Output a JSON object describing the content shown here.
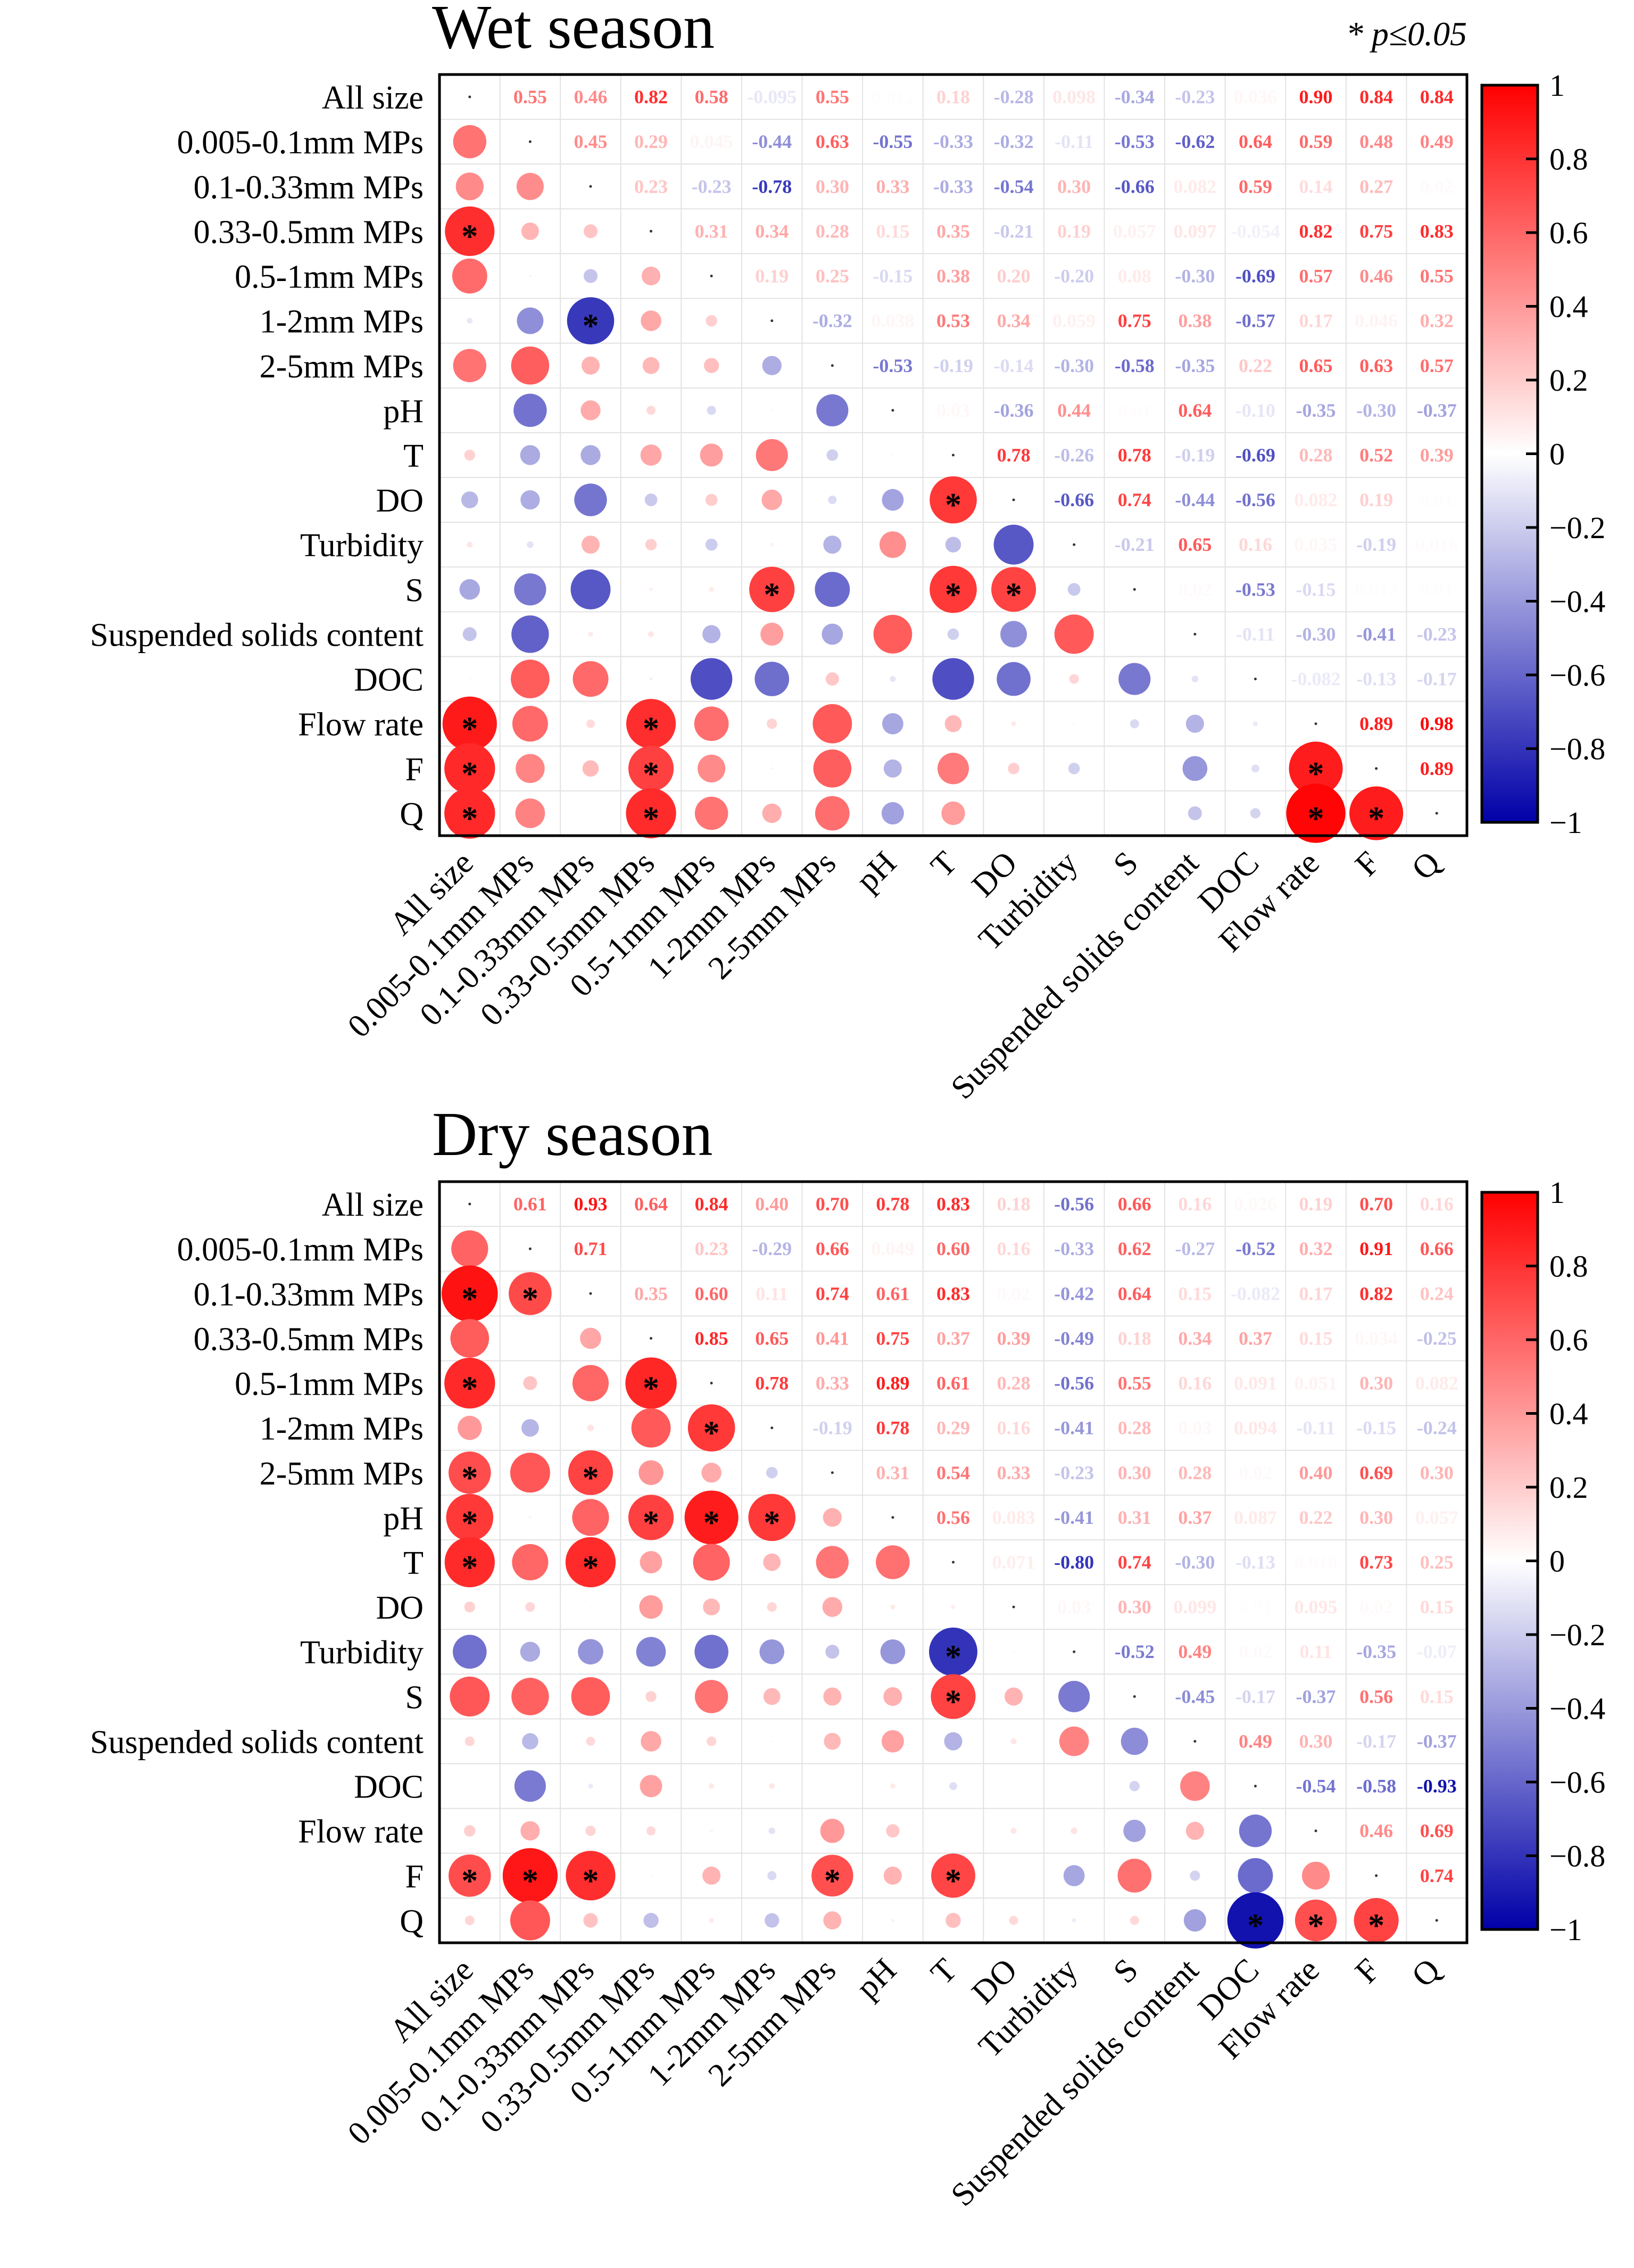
{
  "chart_data": [
    {
      "type": "heatmap",
      "title": "Wet season",
      "annotation": "* p≤0.05",
      "variables": [
        "All size",
        "0.005-0.1mm MPs",
        "0.1-0.33mm MPs",
        "0.33-0.5mm MPs",
        "0.5-1mm MPs",
        "1-2mm MPs",
        "2-5mm MPs",
        "pH",
        "T",
        "DO",
        "Turbidity",
        "S",
        "Suspended solids content",
        "DOC",
        "Flow rate",
        "F",
        "Q"
      ],
      "colorbar": {
        "min": -1,
        "max": 1,
        "ticks": [
          "1",
          "0.8",
          "0.6",
          "0.4",
          "0.2",
          "0",
          "−0.2",
          "−0.4",
          "−0.6",
          "−0.8",
          "−1"
        ],
        "colors": {
          "neg": "#0000a8",
          "mid": "#ffffff",
          "pos": "#ff0000"
        }
      },
      "matrix": [
        [
          1,
          0.55,
          0.46,
          0.82,
          0.58,
          -0.095,
          0.55,
          0.012,
          0.18,
          -0.28,
          0.098,
          -0.34,
          -0.23,
          0.036,
          0.9,
          0.84,
          0.84
        ],
        [
          0.55,
          1,
          0.45,
          0.29,
          0.045,
          -0.44,
          0.63,
          -0.55,
          -0.33,
          -0.32,
          -0.11,
          -0.53,
          -0.62,
          0.64,
          0.59,
          0.48,
          0.49
        ],
        [
          0.46,
          0.45,
          1,
          0.23,
          -0.23,
          -0.78,
          0.3,
          0.33,
          -0.33,
          -0.54,
          0.3,
          -0.66,
          0.082,
          0.59,
          0.14,
          0.27,
          0.02
        ],
        [
          0.82,
          0.29,
          0.23,
          1,
          0.31,
          0.34,
          0.28,
          0.15,
          0.35,
          -0.21,
          0.19,
          0.057,
          0.097,
          -0.054,
          0.82,
          0.75,
          0.83
        ],
        [
          0.58,
          0.045,
          -0.23,
          0.31,
          1,
          0.19,
          0.25,
          -0.15,
          0.38,
          0.2,
          -0.2,
          0.08,
          -0.3,
          -0.69,
          0.57,
          0.46,
          0.55
        ],
        [
          -0.095,
          -0.44,
          -0.78,
          0.34,
          0.19,
          1,
          -0.32,
          0.038,
          0.53,
          0.34,
          0.059,
          0.75,
          0.38,
          -0.57,
          0.17,
          0.046,
          0.32
        ],
        [
          0.55,
          0.63,
          0.3,
          0.28,
          0.25,
          -0.32,
          1,
          -0.53,
          -0.19,
          -0.14,
          -0.3,
          -0.58,
          -0.35,
          0.22,
          0.65,
          0.63,
          0.57
        ],
        [
          0.012,
          -0.55,
          0.33,
          0.15,
          -0.15,
          0.038,
          -0.53,
          1,
          0.03,
          -0.36,
          0.44,
          0.01,
          0.64,
          -0.1,
          -0.35,
          -0.3,
          -0.37
        ],
        [
          0.18,
          -0.33,
          -0.33,
          0.35,
          0.38,
          0.53,
          -0.19,
          0.03,
          1,
          0.78,
          -0.26,
          0.78,
          -0.19,
          -0.69,
          0.28,
          0.52,
          0.39
        ],
        [
          -0.28,
          -0.32,
          -0.54,
          -0.21,
          0.2,
          0.34,
          -0.14,
          -0.36,
          0.78,
          1,
          -0.66,
          0.74,
          -0.44,
          -0.56,
          0.082,
          0.19,
          0.01
        ],
        [
          0.098,
          -0.11,
          0.3,
          0.19,
          -0.2,
          0.059,
          -0.3,
          0.44,
          -0.26,
          -0.66,
          1,
          -0.21,
          0.65,
          0.16,
          0.035,
          -0.19,
          0.016
        ],
        [
          -0.34,
          -0.53,
          -0.66,
          0.057,
          0.08,
          0.75,
          -0.58,
          0.01,
          0.78,
          0.74,
          -0.21,
          1,
          0.02,
          -0.53,
          -0.15,
          0.012,
          0.01
        ],
        [
          -0.23,
          -0.62,
          0.082,
          0.097,
          -0.3,
          0.38,
          -0.35,
          0.64,
          -0.19,
          -0.44,
          0.65,
          0.02,
          1,
          -0.11,
          -0.3,
          -0.41,
          -0.23
        ],
        [
          0.036,
          0.64,
          0.59,
          -0.054,
          -0.69,
          -0.57,
          0.22,
          -0.1,
          -0.69,
          -0.56,
          0.16,
          -0.53,
          -0.11,
          1,
          -0.082,
          -0.13,
          -0.17
        ],
        [
          0.9,
          0.59,
          0.14,
          0.82,
          0.57,
          0.17,
          0.65,
          -0.35,
          0.28,
          0.082,
          0.035,
          -0.15,
          -0.3,
          -0.082,
          1,
          0.89,
          0.98
        ],
        [
          0.84,
          0.48,
          0.27,
          0.75,
          0.46,
          0.046,
          0.63,
          -0.3,
          0.52,
          0.19,
          -0.19,
          0.012,
          -0.41,
          -0.13,
          0.89,
          1,
          0.89
        ],
        [
          0.84,
          0.49,
          0.02,
          0.83,
          0.55,
          0.32,
          0.57,
          -0.37,
          0.39,
          0.01,
          0.016,
          0.01,
          -0.23,
          -0.17,
          0.98,
          0.89,
          1
        ]
      ],
      "significant_pairs": [
        [
          3,
          0
        ],
        [
          5,
          2
        ],
        [
          11,
          5
        ],
        [
          9,
          8
        ],
        [
          11,
          8
        ],
        [
          11,
          9
        ],
        [
          14,
          0
        ],
        [
          14,
          3
        ],
        [
          15,
          0
        ],
        [
          15,
          3
        ],
        [
          15,
          14
        ],
        [
          16,
          0
        ],
        [
          16,
          3
        ],
        [
          16,
          14
        ],
        [
          16,
          15
        ]
      ]
    },
    {
      "type": "heatmap",
      "title": "Dry season",
      "variables": [
        "All size",
        "0.005-0.1mm MPs",
        "0.1-0.33mm MPs",
        "0.33-0.5mm MPs",
        "0.5-1mm MPs",
        "1-2mm MPs",
        "2-5mm MPs",
        "pH",
        "T",
        "DO",
        "Turbidity",
        "S",
        "Suspended solids content",
        "DOC",
        "Flow rate",
        "F",
        "Q"
      ],
      "colorbar": {
        "min": -1,
        "max": 1,
        "ticks": [
          "1",
          "0.8",
          "0.6",
          "0.4",
          "0.2",
          "0",
          "−0.2",
          "−0.4",
          "−0.6",
          "−0.8",
          "−1"
        ],
        "colors": {
          "neg": "#0000a8",
          "mid": "#ffffff",
          "pos": "#ff0000"
        }
      },
      "matrix": [
        [
          1,
          0.61,
          0.93,
          0.64,
          0.84,
          0.4,
          0.7,
          0.78,
          0.83,
          0.18,
          -0.56,
          0.66,
          0.16,
          0.026,
          0.19,
          0.7,
          0.16
        ],
        [
          0.61,
          1,
          0.71,
          0.003,
          0.23,
          -0.29,
          0.66,
          0.049,
          0.6,
          0.16,
          -0.33,
          0.62,
          -0.27,
          -0.52,
          0.32,
          0.91,
          0.66
        ],
        [
          0.93,
          0.71,
          1,
          0.35,
          0.6,
          0.11,
          0.74,
          0.61,
          0.83,
          0.02,
          -0.42,
          0.64,
          0.15,
          -0.082,
          0.17,
          0.82,
          0.24
        ],
        [
          0.64,
          0.003,
          0.35,
          1,
          0.85,
          0.65,
          0.41,
          0.75,
          0.37,
          0.39,
          -0.49,
          0.18,
          0.34,
          0.37,
          0.15,
          0.034,
          -0.25
        ],
        [
          0.84,
          0.23,
          0.6,
          0.85,
          1,
          0.78,
          0.33,
          0.89,
          0.61,
          0.28,
          -0.56,
          0.55,
          0.16,
          0.091,
          0.051,
          0.3,
          0.082
        ],
        [
          0.4,
          -0.29,
          0.11,
          0.65,
          0.78,
          1,
          -0.19,
          0.78,
          0.29,
          0.16,
          -0.41,
          0.28,
          0.03,
          0.094,
          -0.11,
          -0.15,
          -0.24
        ],
        [
          0.7,
          0.66,
          0.74,
          0.41,
          0.33,
          -0.19,
          1,
          0.31,
          0.54,
          0.33,
          -0.23,
          0.3,
          0.28,
          0.02,
          0.4,
          0.69,
          0.3
        ],
        [
          0.78,
          0.049,
          0.61,
          0.75,
          0.89,
          0.78,
          0.31,
          1,
          0.56,
          0.083,
          -0.41,
          0.31,
          0.37,
          0.087,
          0.22,
          0.3,
          0.057
        ],
        [
          0.83,
          0.6,
          0.83,
          0.37,
          0.61,
          0.29,
          0.54,
          0.56,
          1,
          0.071,
          -0.8,
          0.74,
          -0.3,
          -0.13,
          0.016,
          0.73,
          0.25
        ],
        [
          0.18,
          0.16,
          0.02,
          0.39,
          0.28,
          0.16,
          0.33,
          0.083,
          0.071,
          1,
          0.03,
          0.3,
          0.099,
          0.01,
          0.095,
          0.02,
          0.15
        ],
        [
          -0.56,
          -0.33,
          -0.42,
          -0.49,
          -0.56,
          -0.41,
          -0.23,
          -0.41,
          -0.8,
          0.03,
          1,
          -0.52,
          0.49,
          0.02,
          0.11,
          -0.35,
          -0.07
        ],
        [
          0.66,
          0.62,
          0.64,
          0.18,
          0.55,
          0.28,
          0.3,
          0.31,
          0.74,
          0.3,
          -0.52,
          1,
          -0.45,
          -0.17,
          -0.37,
          0.56,
          0.15
        ],
        [
          0.16,
          -0.27,
          0.15,
          0.34,
          0.16,
          0.03,
          0.28,
          0.37,
          -0.3,
          0.099,
          0.49,
          -0.45,
          1,
          0.49,
          0.3,
          -0.17,
          -0.37
        ],
        [
          0.026,
          -0.52,
          -0.082,
          0.37,
          0.091,
          0.094,
          0.02,
          0.087,
          -0.13,
          0.01,
          0.02,
          -0.17,
          0.49,
          1,
          -0.54,
          -0.58,
          -0.93
        ],
        [
          0.19,
          0.32,
          0.17,
          0.15,
          0.051,
          -0.11,
          0.4,
          0.22,
          0.016,
          0.095,
          0.11,
          -0.37,
          0.3,
          -0.54,
          1,
          0.46,
          0.69
        ],
        [
          0.7,
          0.91,
          0.82,
          0.034,
          0.3,
          -0.15,
          0.69,
          0.3,
          0.73,
          0.02,
          -0.35,
          0.56,
          -0.17,
          -0.58,
          0.46,
          1,
          0.74
        ],
        [
          0.16,
          0.66,
          0.24,
          -0.25,
          0.082,
          -0.24,
          0.3,
          0.057,
          0.25,
          0.15,
          -0.07,
          0.15,
          -0.37,
          -0.93,
          0.69,
          0.74,
          1
        ]
      ],
      "significant_pairs": [
        [
          2,
          0
        ],
        [
          2,
          1
        ],
        [
          4,
          0
        ],
        [
          4,
          3
        ],
        [
          5,
          4
        ],
        [
          6,
          0
        ],
        [
          6,
          2
        ],
        [
          7,
          0
        ],
        [
          7,
          3
        ],
        [
          7,
          4
        ],
        [
          7,
          5
        ],
        [
          8,
          0
        ],
        [
          8,
          2
        ],
        [
          10,
          8
        ],
        [
          11,
          8
        ],
        [
          15,
          0
        ],
        [
          15,
          1
        ],
        [
          15,
          2
        ],
        [
          15,
          6
        ],
        [
          15,
          8
        ],
        [
          16,
          13
        ],
        [
          16,
          14
        ],
        [
          16,
          15
        ]
      ]
    }
  ]
}
